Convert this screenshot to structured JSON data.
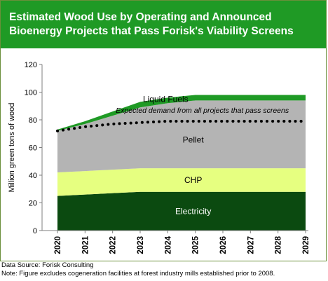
{
  "title": "Estimated Wood Use by Operating and Announced Bioenergy Projects that Pass Forisk's Viability Screens",
  "notes": {
    "source": "Data Source: Forisk Consulting",
    "note": "Note: Figure excludes cogeneration facilities at forest industry mills established prior to 2008."
  },
  "chart_data": {
    "type": "area",
    "stacked": true,
    "ylabel": "Million green tons of wood",
    "xlabel": "",
    "ylim": [
      0,
      120
    ],
    "yticks": [
      0,
      20,
      40,
      60,
      80,
      100,
      120
    ],
    "x": [
      "2020",
      "2021",
      "2022",
      "2023",
      "2024",
      "2025",
      "2026",
      "2027",
      "2028",
      "2029"
    ],
    "series": [
      {
        "name": "Electricity",
        "color": "#0b4a10",
        "values": [
          25,
          26,
          27,
          28,
          28,
          28,
          28,
          28,
          28,
          28
        ]
      },
      {
        "name": "CHP",
        "color": "#e6ff80",
        "values": [
          17,
          17,
          17,
          17,
          17,
          17,
          17,
          17,
          17,
          17
        ]
      },
      {
        "name": "Pellet",
        "color": "#b4b4b4",
        "values": [
          30,
          34,
          39,
          44,
          47,
          49,
          49,
          49,
          49,
          49
        ]
      },
      {
        "name": "Liquid Fuels",
        "color": "#1f9a25",
        "values": [
          1,
          2,
          3,
          4,
          4,
          4,
          4,
          4,
          4,
          4
        ]
      }
    ],
    "expected_demand": {
      "label": "Expected demand from all projects that pass screens",
      "values": [
        72,
        75,
        77,
        78,
        79,
        79,
        79,
        79,
        79,
        79
      ]
    },
    "grid": false,
    "legend": "inline labels"
  }
}
